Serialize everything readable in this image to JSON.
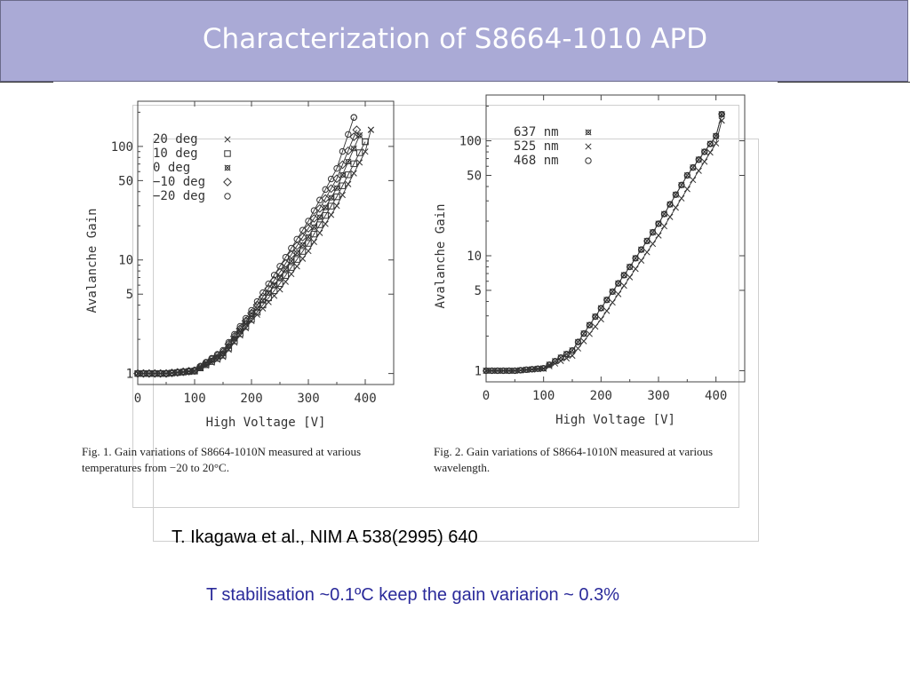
{
  "slide": {
    "title": "Characterization of S8664-1010 APD",
    "reference": "T. Ikagawa et al., NIM A 538(2995) 640",
    "note": "T stabilisation ~0.1ºC keep the gain variarion ~ 0.3%"
  },
  "chart_data": [
    {
      "type": "line",
      "xlabel": "High Voltage [V]",
      "ylabel": "Avalanche Gain",
      "xlim": [
        0,
        450
      ],
      "ylim": [
        0.8,
        250
      ],
      "yscale": "log",
      "xticks": [
        0,
        100,
        200,
        300,
        400
      ],
      "yticks": [
        1,
        5,
        10,
        50,
        100
      ],
      "legend_position": "top-left",
      "caption": "Fig. 1. Gain variations of S8664-1010N measured at various\ntemperatures from −20 to 20°C.",
      "series": [
        {
          "name": "20  deg",
          "marker": "×",
          "x": [
            0,
            50,
            100,
            150,
            200,
            250,
            300,
            350,
            400,
            410
          ],
          "y": [
            1,
            1,
            1.05,
            1.4,
            2.9,
            5.5,
            12,
            30,
            90,
            140
          ]
        },
        {
          "name": "10  deg",
          "marker": "□",
          "x": [
            0,
            50,
            100,
            150,
            200,
            250,
            300,
            350,
            400
          ],
          "y": [
            1,
            1,
            1.05,
            1.45,
            3,
            6.2,
            14,
            36,
            110
          ]
        },
        {
          "name": "0  deg",
          "marker": "¤",
          "x": [
            0,
            50,
            100,
            150,
            200,
            250,
            300,
            350,
            390
          ],
          "y": [
            1,
            1,
            1.06,
            1.5,
            3.2,
            7,
            16,
            43,
            125
          ]
        },
        {
          "name": "−10  deg",
          "marker": "◇",
          "x": [
            0,
            50,
            100,
            150,
            200,
            250,
            300,
            350,
            385
          ],
          "y": [
            1,
            1,
            1.06,
            1.55,
            3.4,
            7.8,
            19,
            52,
            140
          ]
        },
        {
          "name": "−20  deg",
          "marker": "○",
          "x": [
            0,
            50,
            100,
            150,
            200,
            250,
            300,
            350,
            380
          ],
          "y": [
            1,
            1,
            1.07,
            1.6,
            3.6,
            8.8,
            22,
            64,
            180
          ]
        }
      ]
    },
    {
      "type": "line",
      "xlabel": "High Voltage [V]",
      "ylabel": "Avalanche Gain",
      "xlim": [
        0,
        450
      ],
      "ylim": [
        0.8,
        250
      ],
      "yscale": "log",
      "xticks": [
        0,
        100,
        200,
        300,
        400
      ],
      "yticks": [
        1,
        5,
        10,
        50,
        100
      ],
      "legend_position": "top-left",
      "caption": "Fig. 2. Gain variations of S8664-1010N measured at various\nwavelength.",
      "series": [
        {
          "name": "637  nm",
          "marker": "¤",
          "x": [
            0,
            50,
            100,
            150,
            200,
            250,
            300,
            350,
            400,
            410
          ],
          "y": [
            1,
            1,
            1.05,
            1.5,
            3.5,
            8,
            19,
            50,
            110,
            170
          ]
        },
        {
          "name": "525  nm",
          "marker": "×",
          "x": [
            0,
            50,
            100,
            150,
            200,
            250,
            300,
            350,
            400,
            410
          ],
          "y": [
            1,
            1,
            1.04,
            1.35,
            2.8,
            6.5,
            15,
            38,
            95,
            150
          ]
        },
        {
          "name": "468  nm",
          "marker": "○",
          "x": [
            0,
            50,
            100,
            150,
            200,
            250,
            300,
            350,
            400,
            410
          ],
          "y": [
            1,
            1,
            1.05,
            1.5,
            3.5,
            8,
            19,
            50,
            110,
            170
          ]
        }
      ]
    }
  ]
}
